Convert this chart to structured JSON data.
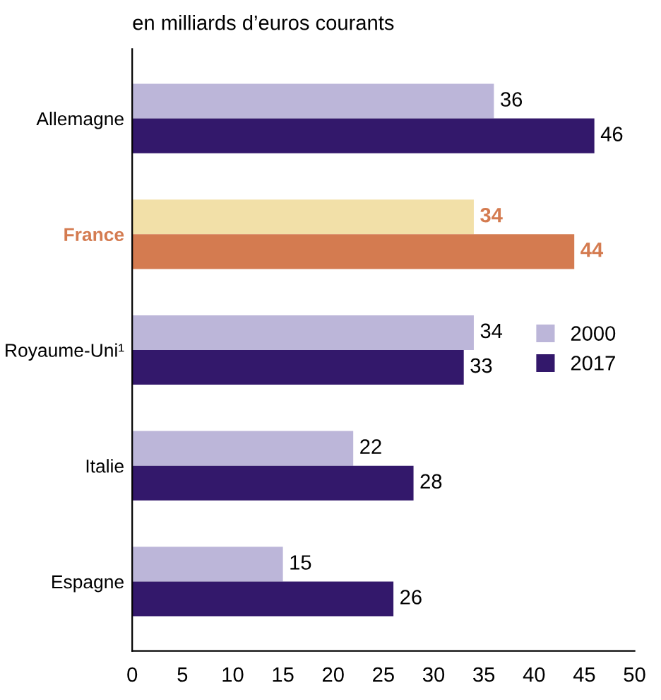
{
  "chart_data": {
    "type": "bar",
    "orientation": "horizontal",
    "subtitle": "en milliards d’euros courants",
    "categories": [
      "Allemagne",
      "France",
      "Royaume-Uni¹",
      "Italie",
      "Espagne"
    ],
    "series": [
      {
        "name": "2000",
        "color": "#bcb6d9",
        "colors": [
          "#bcb6d9",
          "#f2e0a8",
          "#bcb6d9",
          "#bcb6d9",
          "#bcb6d9"
        ],
        "values": [
          36,
          34,
          34,
          22,
          15
        ]
      },
      {
        "name": "2017",
        "color": "#33186b",
        "colors": [
          "#33186b",
          "#d47b50",
          "#33186b",
          "#33186b",
          "#33186b"
        ],
        "values": [
          46,
          44,
          33,
          28,
          26
        ]
      }
    ],
    "xlim": [
      0,
      50
    ],
    "xticks": [
      0,
      5,
      10,
      15,
      20,
      25,
      30,
      35,
      40,
      45,
      50
    ],
    "data_labels": true,
    "grid": false,
    "legend": "right"
  }
}
